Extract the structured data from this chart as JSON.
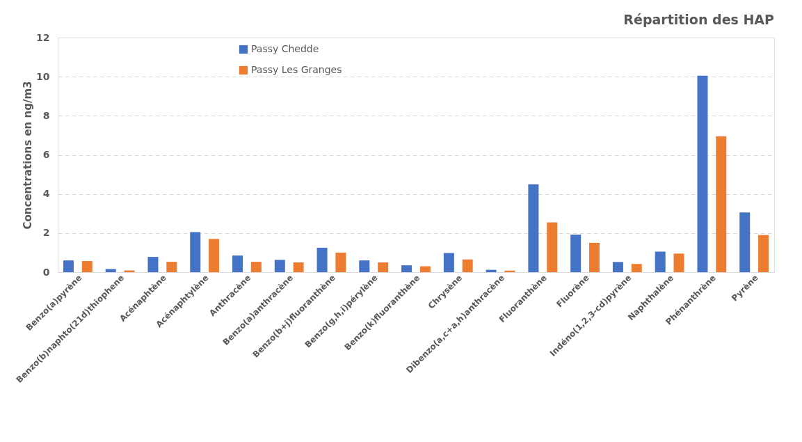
{
  "chart_data": {
    "type": "bar",
    "title": "Répartition des HAP",
    "ylabel": "Concentrations en ng/m3",
    "categories": [
      "Benzo(a)pyrène",
      "Benzo(b)naphto(21d)thiophene",
      "Acénaphtène",
      "Acénaphtylène",
      "Anthracène",
      "Benzo(a)anthracène",
      "Benzo(b+j)fluoranthène",
      "Benzo(g,h,i)pérylène",
      "Benzo(k)fluoranthène",
      "Chrysène",
      "Dibenzo(a,c+a,h)anthracène",
      "Fluoranthène",
      "Fluorène",
      "Indéno(1,2,3-cd)pyrène",
      "Naphthalène",
      "Phénanthrène",
      "Pyrène"
    ],
    "series": [
      {
        "name": "Passy Chedde",
        "color": "#4472c4",
        "values": [
          0.6,
          0.16,
          0.78,
          2.05,
          0.85,
          0.63,
          1.25,
          0.6,
          0.35,
          0.98,
          0.12,
          4.5,
          1.92,
          0.52,
          1.05,
          10.05,
          3.05
        ]
      },
      {
        "name": "Passy Les Granges",
        "color": "#ed7d31",
        "values": [
          0.57,
          0.09,
          0.53,
          1.7,
          0.53,
          0.5,
          1.0,
          0.5,
          0.3,
          0.65,
          0.08,
          2.55,
          1.5,
          0.42,
          0.95,
          6.95,
          1.9
        ]
      }
    ],
    "ylim": [
      0,
      12
    ],
    "yticks": [
      0,
      2,
      4,
      6,
      8,
      10,
      12
    ],
    "grid": "y",
    "legend": "top left"
  }
}
